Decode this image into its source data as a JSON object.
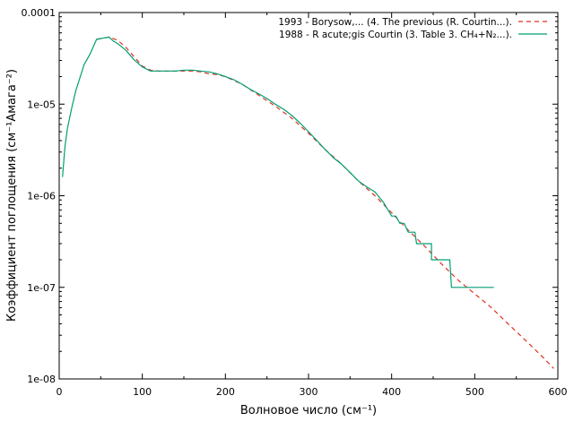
{
  "chart_data": {
    "type": "line",
    "xlabel": "Волновое число (см⁻¹)",
    "ylabel": "Коэффициент поглощения (см⁻¹Амага⁻²)",
    "xlim": [
      0,
      600
    ],
    "ylim": [
      1e-08,
      0.0001
    ],
    "yscale": "log",
    "grid": false,
    "legend_position": "top-right",
    "x_ticks": [
      "0",
      "100",
      "200",
      "300",
      "400",
      "500",
      "600"
    ],
    "y_ticks": [
      "1e-08",
      "1e-07",
      "1e-06",
      "1e-05",
      "0.0001"
    ],
    "series": [
      {
        "name": "1993 - Borysow,... (4. The previous (R. Courtin...).",
        "color": "#e0301e",
        "style": "dashed",
        "points": [
          [
            45,
            5.1e-05
          ],
          [
            60,
            5.4e-05
          ],
          [
            70,
            5e-05
          ],
          [
            80,
            4.2e-05
          ],
          [
            90,
            3.3e-05
          ],
          [
            100,
            2.6e-05
          ],
          [
            110,
            2.35e-05
          ],
          [
            120,
            2.3e-05
          ],
          [
            130,
            2.3e-05
          ],
          [
            140,
            2.3e-05
          ],
          [
            150,
            2.3e-05
          ],
          [
            160,
            2.3e-05
          ],
          [
            170,
            2.25e-05
          ],
          [
            180,
            2.15e-05
          ],
          [
            190,
            2.1e-05
          ],
          [
            200,
            2e-05
          ],
          [
            220,
            1.65e-05
          ],
          [
            240,
            1.25e-05
          ],
          [
            260,
            9.5e-06
          ],
          [
            280,
            7e-06
          ],
          [
            300,
            4.8e-06
          ],
          [
            320,
            3.2e-06
          ],
          [
            340,
            2.2e-06
          ],
          [
            360,
            1.45e-06
          ],
          [
            380,
            1e-06
          ],
          [
            400,
            6.5e-07
          ],
          [
            420,
            4.2e-07
          ],
          [
            440,
            2.8e-07
          ],
          [
            460,
            1.8e-07
          ],
          [
            480,
            1.2e-07
          ],
          [
            500,
            8.5e-08
          ],
          [
            520,
            6e-08
          ],
          [
            540,
            4e-08
          ],
          [
            560,
            2.7e-08
          ],
          [
            580,
            1.8e-08
          ],
          [
            595,
            1.3e-08
          ]
        ]
      },
      {
        "name": "1988 - R  acute;gis Courtin (3. Table 3. CH₄+N₂...).",
        "color": "#009e73",
        "style": "solid",
        "points": [
          [
            4,
            1.6e-06
          ],
          [
            7,
            3.5e-06
          ],
          [
            10,
            5.5e-06
          ],
          [
            15,
            9e-06
          ],
          [
            20,
            1.4e-05
          ],
          [
            30,
            2.7e-05
          ],
          [
            37,
            3.5e-05
          ],
          [
            45,
            5.1e-05
          ],
          [
            55,
            5.3e-05
          ],
          [
            60,
            5.4e-05
          ],
          [
            65,
            4.9e-05
          ],
          [
            70,
            4.6e-05
          ],
          [
            80,
            3.9e-05
          ],
          [
            90,
            3.05e-05
          ],
          [
            100,
            2.55e-05
          ],
          [
            110,
            2.3e-05
          ],
          [
            120,
            2.3e-05
          ],
          [
            130,
            2.3e-05
          ],
          [
            140,
            2.3e-05
          ],
          [
            150,
            2.35e-05
          ],
          [
            160,
            2.35e-05
          ],
          [
            170,
            2.3e-05
          ],
          [
            180,
            2.25e-05
          ],
          [
            190,
            2.15e-05
          ],
          [
            200,
            2e-05
          ],
          [
            210,
            1.85e-05
          ],
          [
            220,
            1.65e-05
          ],
          [
            230,
            1.45e-05
          ],
          [
            240,
            1.3e-05
          ],
          [
            250,
            1.15e-05
          ],
          [
            260,
            1e-05
          ],
          [
            270,
            8.8e-06
          ],
          [
            280,
            7.5e-06
          ],
          [
            290,
            6.2e-06
          ],
          [
            300,
            5e-06
          ],
          [
            310,
            4e-06
          ],
          [
            320,
            3.2e-06
          ],
          [
            330,
            2.6e-06
          ],
          [
            340,
            2.2e-06
          ],
          [
            350,
            1.8e-06
          ],
          [
            360,
            1.45e-06
          ],
          [
            370,
            1.25e-06
          ],
          [
            380,
            1.1e-06
          ],
          [
            390,
            8.5e-07
          ],
          [
            400,
            6e-07
          ],
          [
            405,
            6e-07
          ],
          [
            410,
            5e-07
          ],
          [
            415,
            5e-07
          ],
          [
            420,
            4e-07
          ],
          [
            425,
            4e-07
          ],
          [
            428,
            4e-07
          ],
          [
            430,
            3e-07
          ],
          [
            448,
            3e-07
          ],
          [
            448,
            2e-07
          ],
          [
            470,
            2e-07
          ],
          [
            472,
            1e-07
          ],
          [
            523,
            1e-07
          ]
        ]
      }
    ]
  }
}
